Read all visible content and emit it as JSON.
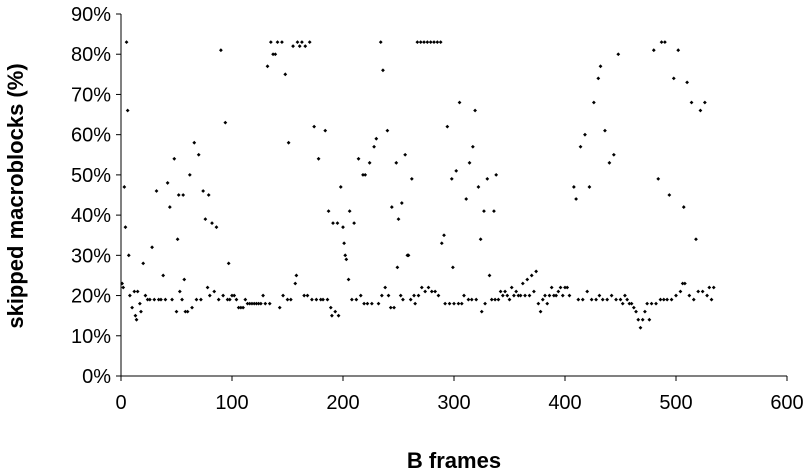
{
  "chart_data": {
    "type": "scatter",
    "xlabel": "B frames",
    "ylabel": "skipped macroblocks (%)",
    "xlim": [
      0,
      600
    ],
    "ylim": [
      0,
      90
    ],
    "x_ticks": [
      "0",
      "100",
      "200",
      "300",
      "400",
      "500",
      "600"
    ],
    "y_ticks": [
      "0%",
      "10%",
      "20%",
      "30%",
      "40%",
      "50%",
      "60%",
      "70%",
      "80%",
      "90%"
    ],
    "grid": false,
    "legend": "none",
    "marker_color": "#000000",
    "series": [
      {
        "points": [
          [
            1,
            23
          ],
          [
            2,
            22
          ],
          [
            3,
            47
          ],
          [
            4,
            37
          ],
          [
            5,
            83
          ],
          [
            6,
            66
          ],
          [
            7,
            30
          ],
          [
            8,
            20
          ],
          [
            10,
            17
          ],
          [
            12,
            21
          ],
          [
            13,
            15
          ],
          [
            14,
            14
          ],
          [
            15,
            21
          ],
          [
            17,
            18
          ],
          [
            18,
            16
          ],
          [
            20,
            28
          ],
          [
            22,
            20
          ],
          [
            24,
            19
          ],
          [
            26,
            19
          ],
          [
            28,
            32
          ],
          [
            30,
            19
          ],
          [
            32,
            46
          ],
          [
            34,
            19
          ],
          [
            36,
            19
          ],
          [
            38,
            25
          ],
          [
            40,
            19
          ],
          [
            42,
            48
          ],
          [
            44,
            42
          ],
          [
            46,
            19
          ],
          [
            48,
            54
          ],
          [
            50,
            16
          ],
          [
            51,
            34
          ],
          [
            52,
            45
          ],
          [
            53,
            21
          ],
          [
            55,
            19
          ],
          [
            56,
            45
          ],
          [
            57,
            24
          ],
          [
            58,
            16
          ],
          [
            60,
            16
          ],
          [
            62,
            50
          ],
          [
            64,
            17
          ],
          [
            66,
            58
          ],
          [
            68,
            19
          ],
          [
            70,
            55
          ],
          [
            72,
            19
          ],
          [
            74,
            46
          ],
          [
            76,
            39
          ],
          [
            78,
            22
          ],
          [
            79,
            45
          ],
          [
            80,
            20
          ],
          [
            82,
            38
          ],
          [
            84,
            21
          ],
          [
            86,
            37
          ],
          [
            88,
            19
          ],
          [
            90,
            81
          ],
          [
            92,
            20
          ],
          [
            94,
            63
          ],
          [
            96,
            19
          ],
          [
            97,
            28
          ],
          [
            98,
            19
          ],
          [
            100,
            20
          ],
          [
            102,
            20
          ],
          [
            104,
            19
          ],
          [
            106,
            17
          ],
          [
            108,
            17
          ],
          [
            110,
            17
          ],
          [
            112,
            19
          ],
          [
            114,
            18
          ],
          [
            116,
            18
          ],
          [
            118,
            18
          ],
          [
            120,
            18
          ],
          [
            122,
            18
          ],
          [
            124,
            18
          ],
          [
            126,
            18
          ],
          [
            128,
            20
          ],
          [
            130,
            18
          ],
          [
            132,
            77
          ],
          [
            134,
            18
          ],
          [
            135,
            83
          ],
          [
            137,
            80
          ],
          [
            139,
            80
          ],
          [
            141,
            83
          ],
          [
            143,
            17
          ],
          [
            145,
            83
          ],
          [
            146,
            20
          ],
          [
            148,
            75
          ],
          [
            150,
            19
          ],
          [
            151,
            58
          ],
          [
            153,
            19
          ],
          [
            155,
            82
          ],
          [
            157,
            23
          ],
          [
            158,
            25
          ],
          [
            159,
            83
          ],
          [
            161,
            82
          ],
          [
            163,
            83
          ],
          [
            165,
            20
          ],
          [
            166,
            82
          ],
          [
            168,
            20
          ],
          [
            170,
            83
          ],
          [
            172,
            19
          ],
          [
            174,
            62
          ],
          [
            176,
            19
          ],
          [
            178,
            54
          ],
          [
            180,
            19
          ],
          [
            182,
            19
          ],
          [
            184,
            61
          ],
          [
            186,
            19
          ],
          [
            187,
            41
          ],
          [
            189,
            17
          ],
          [
            190,
            15
          ],
          [
            191,
            38
          ],
          [
            193,
            16
          ],
          [
            195,
            38
          ],
          [
            196,
            15
          ],
          [
            198,
            47
          ],
          [
            200,
            37
          ],
          [
            201,
            33
          ],
          [
            202,
            30
          ],
          [
            203,
            29
          ],
          [
            205,
            24
          ],
          [
            206,
            41
          ],
          [
            208,
            19
          ],
          [
            210,
            38
          ],
          [
            212,
            19
          ],
          [
            214,
            54
          ],
          [
            216,
            20
          ],
          [
            218,
            50
          ],
          [
            219,
            18
          ],
          [
            220,
            50
          ],
          [
            222,
            18
          ],
          [
            224,
            53
          ],
          [
            226,
            18
          ],
          [
            228,
            57
          ],
          [
            230,
            59
          ],
          [
            232,
            18
          ],
          [
            234,
            83
          ],
          [
            235,
            20
          ],
          [
            236,
            76
          ],
          [
            238,
            22
          ],
          [
            240,
            61
          ],
          [
            241,
            20
          ],
          [
            243,
            17
          ],
          [
            244,
            42
          ],
          [
            246,
            17
          ],
          [
            248,
            53
          ],
          [
            249,
            27
          ],
          [
            250,
            39
          ],
          [
            252,
            20
          ],
          [
            253,
            43
          ],
          [
            254,
            19
          ],
          [
            256,
            55
          ],
          [
            258,
            30
          ],
          [
            259,
            30
          ],
          [
            261,
            19
          ],
          [
            262,
            49
          ],
          [
            264,
            20
          ],
          [
            265,
            18
          ],
          [
            267,
            83
          ],
          [
            268,
            20
          ],
          [
            270,
            83
          ],
          [
            271,
            22
          ],
          [
            273,
            83
          ],
          [
            274,
            21
          ],
          [
            276,
            83
          ],
          [
            277,
            22
          ],
          [
            279,
            83
          ],
          [
            280,
            21
          ],
          [
            282,
            83
          ],
          [
            283,
            21
          ],
          [
            285,
            83
          ],
          [
            286,
            20
          ],
          [
            288,
            83
          ],
          [
            289,
            33
          ],
          [
            291,
            35
          ],
          [
            292,
            18
          ],
          [
            294,
            62
          ],
          [
            296,
            18
          ],
          [
            298,
            49
          ],
          [
            299,
            27
          ],
          [
            300,
            18
          ],
          [
            302,
            51
          ],
          [
            304,
            18
          ],
          [
            305,
            68
          ],
          [
            307,
            18
          ],
          [
            309,
            20
          ],
          [
            311,
            44
          ],
          [
            313,
            19
          ],
          [
            314,
            53
          ],
          [
            316,
            19
          ],
          [
            317,
            57
          ],
          [
            319,
            66
          ],
          [
            320,
            19
          ],
          [
            322,
            47
          ],
          [
            324,
            34
          ],
          [
            325,
            16
          ],
          [
            327,
            41
          ],
          [
            328,
            18
          ],
          [
            330,
            49
          ],
          [
            332,
            25
          ],
          [
            334,
            19
          ],
          [
            336,
            41
          ],
          [
            337,
            19
          ],
          [
            338,
            50
          ],
          [
            340,
            19
          ],
          [
            342,
            21
          ],
          [
            344,
            20
          ],
          [
            346,
            21
          ],
          [
            348,
            20
          ],
          [
            350,
            19
          ],
          [
            352,
            22
          ],
          [
            354,
            20
          ],
          [
            356,
            21
          ],
          [
            358,
            20
          ],
          [
            360,
            20
          ],
          [
            362,
            23
          ],
          [
            364,
            20
          ],
          [
            366,
            24
          ],
          [
            368,
            20
          ],
          [
            370,
            25
          ],
          [
            372,
            21
          ],
          [
            374,
            26
          ],
          [
            376,
            18
          ],
          [
            378,
            16
          ],
          [
            380,
            19
          ],
          [
            382,
            20
          ],
          [
            384,
            18
          ],
          [
            386,
            20
          ],
          [
            388,
            22
          ],
          [
            390,
            20
          ],
          [
            392,
            20
          ],
          [
            394,
            21
          ],
          [
            396,
            22
          ],
          [
            398,
            20
          ],
          [
            400,
            22
          ],
          [
            402,
            22
          ],
          [
            404,
            20
          ],
          [
            408,
            47
          ],
          [
            410,
            44
          ],
          [
            412,
            19
          ],
          [
            414,
            57
          ],
          [
            416,
            19
          ],
          [
            418,
            60
          ],
          [
            420,
            21
          ],
          [
            422,
            47
          ],
          [
            424,
            19
          ],
          [
            426,
            68
          ],
          [
            428,
            19
          ],
          [
            430,
            74
          ],
          [
            431,
            20
          ],
          [
            432,
            77
          ],
          [
            434,
            19
          ],
          [
            436,
            61
          ],
          [
            438,
            19
          ],
          [
            440,
            53
          ],
          [
            442,
            20
          ],
          [
            444,
            55
          ],
          [
            446,
            19
          ],
          [
            448,
            80
          ],
          [
            450,
            19
          ],
          [
            452,
            18
          ],
          [
            454,
            20
          ],
          [
            456,
            19
          ],
          [
            458,
            18
          ],
          [
            460,
            18
          ],
          [
            462,
            17
          ],
          [
            464,
            16
          ],
          [
            466,
            14
          ],
          [
            468,
            12
          ],
          [
            470,
            14
          ],
          [
            472,
            16
          ],
          [
            474,
            18
          ],
          [
            476,
            14
          ],
          [
            478,
            18
          ],
          [
            480,
            81
          ],
          [
            482,
            18
          ],
          [
            484,
            49
          ],
          [
            486,
            19
          ],
          [
            487,
            83
          ],
          [
            489,
            19
          ],
          [
            490,
            83
          ],
          [
            492,
            19
          ],
          [
            494,
            45
          ],
          [
            496,
            19
          ],
          [
            498,
            74
          ],
          [
            500,
            20
          ],
          [
            502,
            81
          ],
          [
            504,
            21
          ],
          [
            506,
            23
          ],
          [
            507,
            42
          ],
          [
            508,
            23
          ],
          [
            510,
            73
          ],
          [
            512,
            20
          ],
          [
            514,
            68
          ],
          [
            516,
            19
          ],
          [
            518,
            34
          ],
          [
            520,
            21
          ],
          [
            522,
            66
          ],
          [
            524,
            21
          ],
          [
            526,
            68
          ],
          [
            528,
            20
          ],
          [
            530,
            22
          ],
          [
            532,
            19
          ],
          [
            534,
            22
          ]
        ]
      }
    ]
  }
}
